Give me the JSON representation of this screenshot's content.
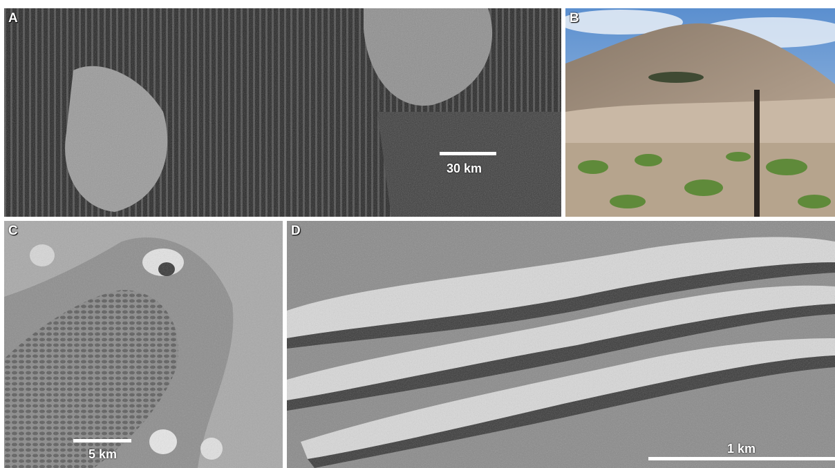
{
  "panels": {
    "a": {
      "label": "A",
      "scale_text": "30 km"
    },
    "b": {
      "label": "B"
    },
    "c": {
      "label": "C",
      "scale_text": "5 km"
    },
    "d": {
      "label": "D",
      "scale_text": "1 km"
    }
  }
}
